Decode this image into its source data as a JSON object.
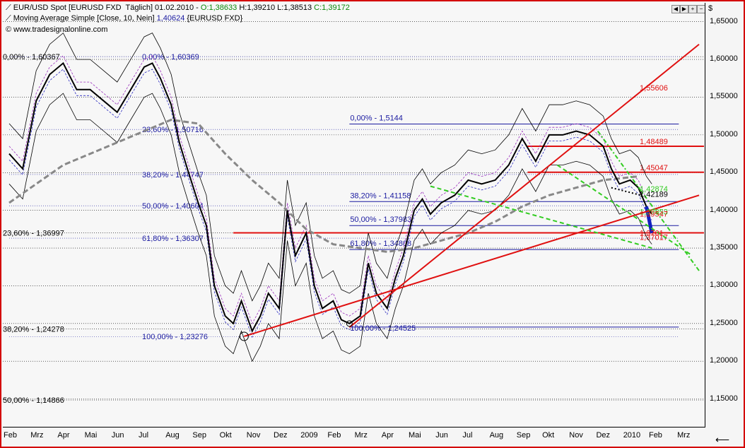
{
  "header": {
    "line1_prefix": "EUR/USD Spot [EURUSD FXD  Täglich] 01.02.2010 - ",
    "open": "O:1,38633",
    "high": "H:1,39210",
    "low": "L:1,38513",
    "close": "C:1,39172",
    "line2_prefix": "Moving Average Simple [Close, 10, Nein] ",
    "ma_value": "1,40624",
    "line2_suffix": " {EURUSD FXD}",
    "line3": "© www.tradesignalonline.com"
  },
  "axis": {
    "currency": "$",
    "back_arrow": "⟵"
  },
  "colors": {
    "fib": "#1a1aa0",
    "resistance": "#e01010",
    "ma_long": "#888888",
    "green": "#33cc22",
    "bollinger": "#000000"
  },
  "chart_data": {
    "type": "line",
    "title": "EUR/USD Spot",
    "ylim": [
      1.115,
      1.675
    ],
    "y_ticks": [
      "1,15000",
      "1,20000",
      "1,25000",
      "1,30000",
      "1,35000",
      "1,40000",
      "1,45000",
      "1,50000",
      "1,55000",
      "1,60000",
      "1,65000"
    ],
    "y_tick_values": [
      1.15,
      1.2,
      1.25,
      1.3,
      1.35,
      1.4,
      1.45,
      1.5,
      1.55,
      1.6,
      1.65
    ],
    "x_ticks": [
      "Feb",
      "Mrz",
      "Apr",
      "Mai",
      "Jun",
      "Jul",
      "Aug",
      "Sep",
      "Okt",
      "Nov",
      "Dez",
      "2009",
      "Feb",
      "Mrz",
      "Apr",
      "Mai",
      "Jun",
      "Jul",
      "Aug",
      "Sep",
      "Okt",
      "Nov",
      "Dez",
      "2010",
      "Feb",
      "Mrz"
    ],
    "x_tick_index": [
      0,
      1,
      2,
      3,
      4,
      5,
      6,
      7,
      8,
      9,
      10,
      11,
      12,
      13,
      14,
      15,
      16,
      17,
      18,
      19,
      19.95,
      20.95,
      21.95,
      22.95,
      23.9,
      24.95
    ],
    "price_x": [
      0,
      0.5,
      1,
      1.5,
      2,
      2.5,
      3,
      3.5,
      4,
      4.5,
      5,
      5.3,
      5.6,
      6,
      6.3,
      6.6,
      7,
      7.3,
      7.6,
      8,
      8.3,
      8.6,
      9,
      9.3,
      9.6,
      10,
      10.3,
      10.6,
      11,
      11.3,
      11.6,
      12,
      12.3,
      12.6,
      13,
      13.3,
      13.6,
      14,
      14.3,
      14.6,
      15,
      15.3,
      15.6,
      16,
      16.5,
      17,
      17.5,
      18,
      18.5,
      19,
      19.5,
      20,
      20.5,
      21,
      21.5,
      22,
      22.3,
      22.6,
      23,
      23.3,
      23.6,
      23.8
    ],
    "price_y": [
      1.475,
      1.455,
      1.545,
      1.58,
      1.595,
      1.56,
      1.56,
      1.545,
      1.53,
      1.56,
      1.59,
      1.595,
      1.575,
      1.54,
      1.49,
      1.455,
      1.41,
      1.38,
      1.3,
      1.26,
      1.25,
      1.28,
      1.24,
      1.26,
      1.29,
      1.27,
      1.4,
      1.34,
      1.37,
      1.3,
      1.27,
      1.28,
      1.255,
      1.25,
      1.26,
      1.33,
      1.29,
      1.27,
      1.31,
      1.34,
      1.4,
      1.415,
      1.395,
      1.41,
      1.42,
      1.44,
      1.435,
      1.44,
      1.46,
      1.495,
      1.465,
      1.5,
      1.5,
      1.505,
      1.5,
      1.485,
      1.455,
      1.435,
      1.44,
      1.43,
      1.405,
      1.395
    ],
    "ma_long_x": [
      0,
      2,
      4,
      6,
      7,
      8,
      9,
      10,
      11,
      12,
      13,
      14,
      15,
      16,
      17,
      18,
      19,
      20,
      21,
      22,
      23.3
    ],
    "ma_long_y": [
      1.41,
      1.46,
      1.49,
      1.52,
      1.515,
      1.475,
      1.44,
      1.41,
      1.375,
      1.355,
      1.35,
      1.345,
      1.35,
      1.36,
      1.37,
      1.385,
      1.405,
      1.42,
      1.43,
      1.44,
      1.445
    ],
    "fib_set_1": {
      "x_range": [
        0,
        24.8
      ],
      "levels": [
        {
          "label": "0,00% - 1,60369",
          "value": 1.60369
        },
        {
          "label": "23,60% - 1,50716",
          "value": 1.50716
        },
        {
          "label": "38,20% - 1,44747",
          "value": 1.44747
        },
        {
          "label": "50,00% - 1,40604",
          "value": 1.40604
        },
        {
          "label": "61,80% - 1,36307",
          "value": 1.36307
        },
        {
          "label": "100,00% - 1,23276",
          "value": 1.23276
        }
      ]
    },
    "fib_set_2": {
      "x_range": [
        12.6,
        24.8
      ],
      "levels": [
        {
          "label": "0,00% - 1,5144",
          "value": 1.5144
        },
        {
          "label": "38,20% - 1,41158",
          "value": 1.41158
        },
        {
          "label": "50,00% - 1,37983",
          "value": 1.37983
        },
        {
          "label": "61,80% - 1,34808",
          "value": 1.34808
        },
        {
          "label": "100,00% - 1,24525",
          "value": 1.24525
        }
      ]
    },
    "left_levels": [
      {
        "label": "0,00% - 1,60367",
        "value": 1.60367
      },
      {
        "label": "23,60% - 1,36997",
        "value": 1.36997
      },
      {
        "label": "38,20% - 1,24278",
        "value": 1.24278
      },
      {
        "label": "50,00% - 1,14866",
        "value": 1.14866
      }
    ],
    "red_levels": [
      {
        "label": "1,55606",
        "value": 1.55606,
        "label_x": 23.3
      },
      {
        "label": "1,48489",
        "value": 1.48489,
        "label_x": 23.3
      },
      {
        "label": "1,45047",
        "value": 1.45047,
        "label_x": 23.3
      },
      {
        "label": "1,37017",
        "value": 1.37017,
        "label_x": 23.3
      }
    ],
    "annotations": [
      {
        "label": "1,42874",
        "x": 23.3,
        "y": 1.4287,
        "color": "#33cc22"
      },
      {
        "label": "1,42189",
        "x": 23.3,
        "y": 1.4219,
        "color": "#000000"
      },
      {
        "label": "1,39853",
        "x": 23.3,
        "y": 1.3985,
        "color": "#33cc22"
      },
      {
        "label": "1,39547",
        "x": 23.3,
        "y": 1.3955,
        "color": "#e01010"
      },
      {
        "label": "1,3701",
        "x": 23.3,
        "y": 1.3701,
        "color": "#e01010"
      }
    ],
    "trendlines": [
      {
        "x": [
          8.7,
          25.55
        ],
        "y": [
          1.233,
          1.42
        ],
        "color": "#e01010",
        "width": 2,
        "dash": ""
      },
      {
        "x": [
          12.6,
          25.55
        ],
        "y": [
          1.245,
          1.62
        ],
        "color": "#e01010",
        "width": 2,
        "dash": ""
      },
      {
        "x": [
          15.6,
          23.8
        ],
        "y": [
          1.432,
          1.35
        ],
        "color": "#33cc22",
        "width": 2,
        "dash": "6,4"
      },
      {
        "x": [
          21.8,
          25.55
        ],
        "y": [
          1.505,
          1.32
        ],
        "color": "#33cc22",
        "width": 2,
        "dash": "6,3,2,3"
      },
      {
        "x": [
          20.3,
          25.3
        ],
        "y": [
          1.46,
          1.34
        ],
        "color": "#33cc22",
        "width": 2,
        "dash": "6,4"
      },
      {
        "x": [
          22.3,
          23.4
        ],
        "y": [
          1.43,
          1.42
        ],
        "color": "#000000",
        "width": 2,
        "dash": "2,3"
      }
    ]
  }
}
